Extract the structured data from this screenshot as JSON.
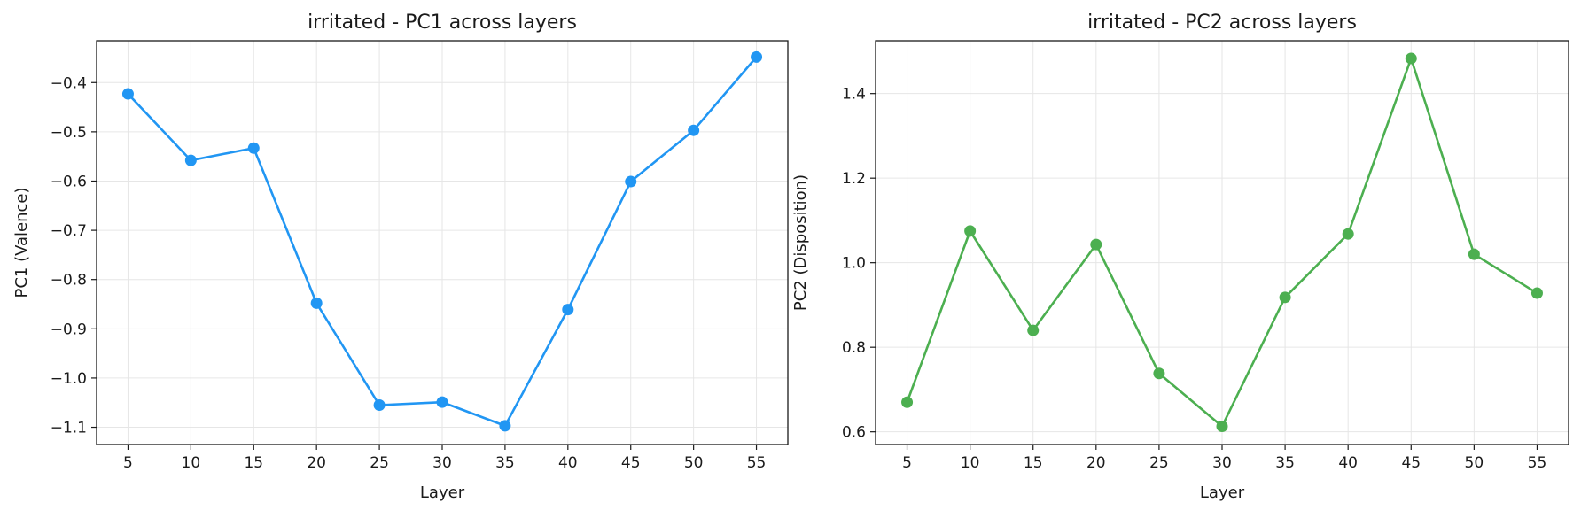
{
  "chart_data": [
    {
      "type": "line",
      "title": "irritated - PC1 across layers",
      "xlabel": "Layer",
      "ylabel": "PC1 (Valence)",
      "x": [
        5,
        10,
        15,
        20,
        25,
        30,
        35,
        40,
        45,
        50,
        55
      ],
      "xticks": [
        5,
        10,
        15,
        20,
        25,
        30,
        35,
        40,
        45,
        50,
        55
      ],
      "xlim": [
        2.5,
        57.5
      ],
      "ylim": [
        -1.135,
        -0.315
      ],
      "yticks": [
        -1.1,
        -1.0,
        -0.9,
        -0.8,
        -0.7,
        -0.6,
        -0.5,
        -0.4
      ],
      "ytick_labels": [
        "−1.1",
        "−1.0",
        "−0.9",
        "−0.8",
        "−0.7",
        "−0.6",
        "−0.5",
        "−0.4"
      ],
      "grid": true,
      "series": [
        {
          "values": [
            -0.423,
            -0.558,
            -0.533,
            -0.848,
            -1.055,
            -1.049,
            -1.097,
            -0.861,
            -0.601,
            -0.497,
            -0.348
          ],
          "color": "#2196f3"
        }
      ]
    },
    {
      "type": "line",
      "title": "irritated - PC2 across layers",
      "xlabel": "Layer",
      "ylabel": "PC2 (Disposition)",
      "x": [
        5,
        10,
        15,
        20,
        25,
        30,
        35,
        40,
        45,
        50,
        55
      ],
      "xticks": [
        5,
        10,
        15,
        20,
        25,
        30,
        35,
        40,
        45,
        50,
        55
      ],
      "xlim": [
        2.5,
        57.5
      ],
      "ylim": [
        0.57,
        1.525
      ],
      "yticks": [
        0.6,
        0.8,
        1.0,
        1.2,
        1.4
      ],
      "ytick_labels": [
        "0.6",
        "0.8",
        "1.0",
        "1.2",
        "1.4"
      ],
      "grid": true,
      "series": [
        {
          "values": [
            0.67,
            1.075,
            0.84,
            1.043,
            0.738,
            0.613,
            0.918,
            1.068,
            1.483,
            1.02,
            0.928
          ],
          "color": "#4caf50"
        }
      ]
    }
  ]
}
